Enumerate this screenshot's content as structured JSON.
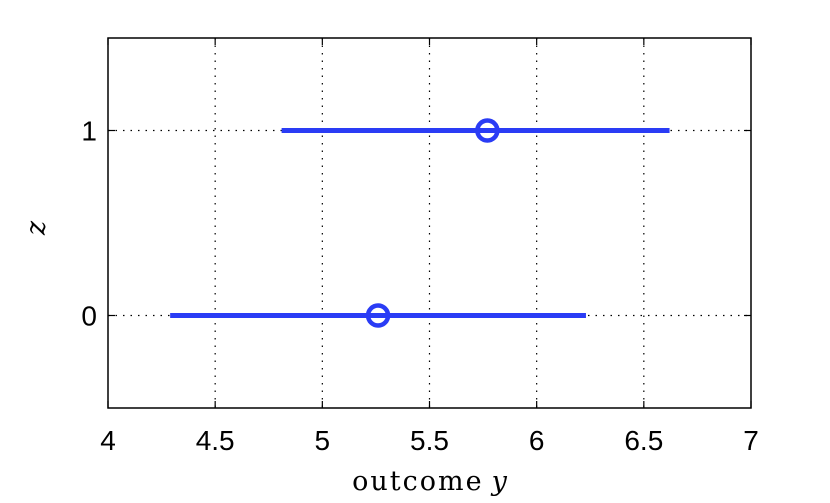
{
  "chart_data": {
    "type": "interval",
    "title": "",
    "xlabel_text": "outcome",
    "xlabel_var": "y",
    "ylabel": "z",
    "xlim": [
      4,
      7
    ],
    "ylim": [
      -0.5,
      1.5
    ],
    "xticks": [
      4,
      4.5,
      5,
      5.5,
      6,
      6.5,
      7
    ],
    "xtick_labels": [
      "4",
      "4.5",
      "5",
      "5.5",
      "6",
      "6.5",
      "7"
    ],
    "yticks": [
      0,
      1
    ],
    "ytick_labels": [
      "0",
      "1"
    ],
    "grid": true,
    "grid_style": "dotted",
    "series": [
      {
        "color": "#2a3cf5",
        "points": [
          {
            "z": 1,
            "center": 5.77,
            "low": 4.81,
            "high": 6.62
          },
          {
            "z": 0,
            "center": 5.26,
            "low": 4.29,
            "high": 6.23
          }
        ]
      }
    ]
  }
}
